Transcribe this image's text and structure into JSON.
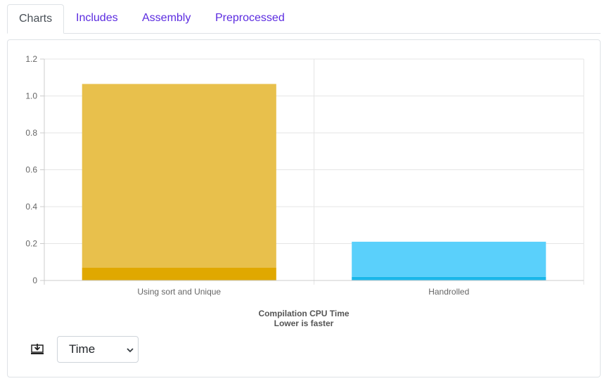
{
  "tabs": [
    {
      "label": "Charts",
      "active": true
    },
    {
      "label": "Includes",
      "active": false
    },
    {
      "label": "Assembly",
      "active": false
    },
    {
      "label": "Preprocessed",
      "active": false
    }
  ],
  "chart_data": {
    "type": "bar",
    "stacked": true,
    "categories": [
      "Using sort and Unique",
      "Handrolled"
    ],
    "series": [
      {
        "values": [
          0.07,
          0.02
        ],
        "colors": [
          "#e0a800",
          "#1ab7ea"
        ]
      },
      {
        "values": [
          0.995,
          0.19
        ],
        "colors": [
          "#e8c04c",
          "#5ad0fb"
        ]
      }
    ],
    "ylim": [
      0,
      1.2
    ],
    "yticks": [
      "0",
      "0.2",
      "0.4",
      "0.6",
      "0.8",
      "1.0",
      "1.2"
    ],
    "title": "Compilation CPU Time",
    "subtitle": "Lower is faster",
    "grid": true
  },
  "controls": {
    "download_icon": "download-icon",
    "metric_select_value": "Time"
  }
}
